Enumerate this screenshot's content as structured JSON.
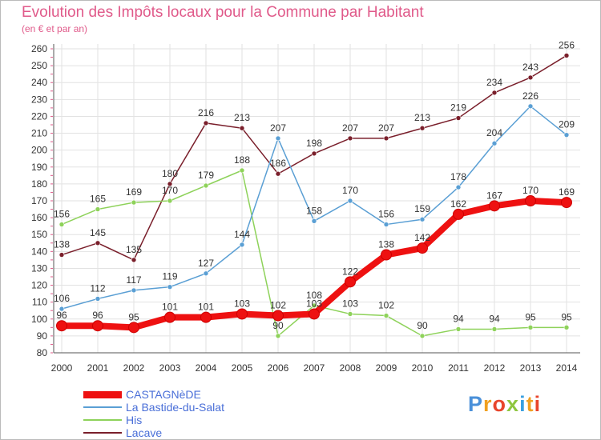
{
  "header": {
    "title": "Evolution des Impôts locaux pour la Commune par Habitant",
    "subtitle": "(en € et par an)"
  },
  "logo": {
    "text": "Proxiti",
    "colors": [
      "#4a90d9",
      "#f0a020",
      "#e8452c",
      "#8fc63f",
      "#3aa0e0",
      "#f0a020",
      "#e8452c"
    ]
  },
  "chart_data": {
    "type": "line",
    "x": [
      "2000",
      "2001",
      "2002",
      "2003",
      "2004",
      "2005",
      "2006",
      "2007",
      "2008",
      "2009",
      "2010",
      "2011",
      "2012",
      "2013",
      "2014"
    ],
    "ylim": [
      80,
      260
    ],
    "yticks": [
      80,
      90,
      100,
      110,
      120,
      130,
      140,
      150,
      160,
      170,
      180,
      190,
      200,
      210,
      220,
      230,
      240,
      250,
      260
    ],
    "grid": true,
    "legend": "bottom-left",
    "series": [
      {
        "name": "Lacave",
        "color": "#7a1f2b",
        "emphasis": false,
        "values": [
          138,
          145,
          135,
          180,
          216,
          213,
          186,
          198,
          207,
          207,
          213,
          219,
          234,
          243,
          256
        ]
      },
      {
        "name": "His",
        "color": "#8ed25a",
        "emphasis": false,
        "values": [
          156,
          165,
          169,
          170,
          179,
          188,
          90,
          108,
          103,
          102,
          90,
          94,
          94,
          95,
          95
        ]
      },
      {
        "name": "La Bastide-du-Salat",
        "color": "#5a9fd4",
        "emphasis": false,
        "values": [
          106,
          112,
          117,
          119,
          127,
          144,
          207,
          158,
          170,
          156,
          159,
          178,
          204,
          226,
          209
        ]
      },
      {
        "name": "CASTAGNèDE",
        "color": "#ee1111",
        "emphasis": true,
        "values": [
          96,
          96,
          95,
          101,
          101,
          103,
          102,
          103,
          122,
          138,
          142,
          162,
          167,
          170,
          169
        ]
      }
    ]
  }
}
